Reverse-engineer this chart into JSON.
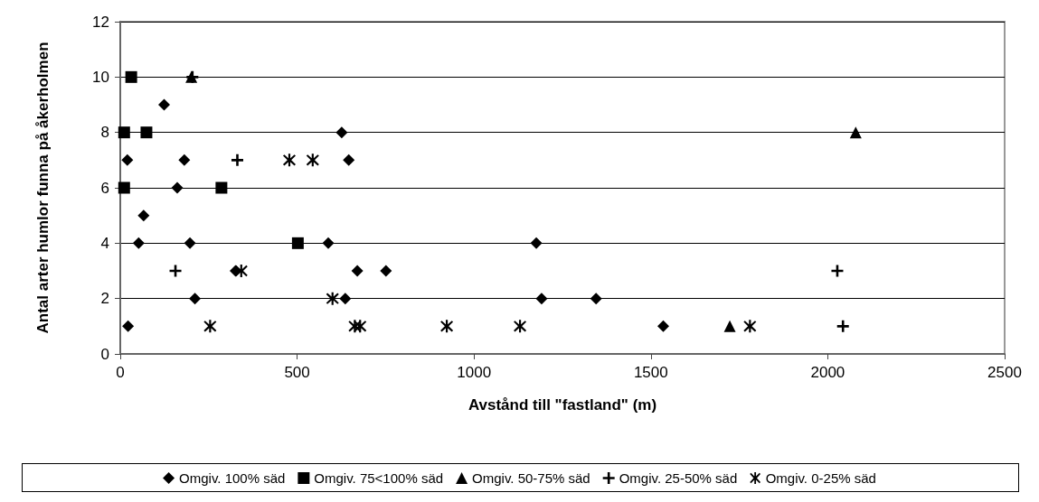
{
  "chart_data": {
    "type": "scatter",
    "xlabel": "Avstånd till \"fastland\" (m)",
    "ylabel": "Antal arter humlor funna på åkerholmen",
    "xlim": [
      0,
      2500
    ],
    "xticks": [
      0,
      500,
      1000,
      1500,
      2000,
      2500
    ],
    "ylim": [
      0,
      12
    ],
    "yticks": [
      0,
      2,
      4,
      6,
      8,
      10,
      12
    ],
    "grid": "y",
    "legend": "bottom",
    "series": [
      {
        "name": "Omgiv. 100% säd",
        "color": "#000000",
        "marker": "diamond",
        "x": [
          124,
          626,
          20,
          181,
          646,
          161,
          66,
          52,
          197,
          588,
          1176,
          326,
          670,
          751,
          211,
          636,
          1191,
          1345,
          22,
          1535
        ],
        "values": [
          9,
          8,
          7,
          7,
          7,
          6,
          5,
          4,
          4,
          4,
          4,
          3,
          3,
          3,
          2,
          2,
          2,
          2,
          1,
          1
        ]
      },
      {
        "name": "Omgiv. 75<100% säd",
        "color": "#000000",
        "marker": "square",
        "x": [
          31,
          11,
          74,
          11,
          286,
          502
        ],
        "values": [
          10,
          8,
          8,
          6,
          6,
          4
        ]
      },
      {
        "name": "Omgiv. 50-75% säd",
        "color": "#000000",
        "marker": "triangle",
        "x": [
          201,
          2079,
          1723
        ],
        "values": [
          10,
          8,
          1
        ]
      },
      {
        "name": "Omgiv. 25-50% säd",
        "color": "#000000",
        "marker": "cross",
        "x": [
          204,
          331,
          156,
          2027,
          2043
        ],
        "values": [
          10,
          7,
          3,
          3,
          1
        ]
      },
      {
        "name": "Omgiv. 0-25% säd",
        "color": "#000000",
        "marker": "star",
        "x": [
          478,
          544,
          342,
          600,
          254,
          663,
          678,
          923,
          1130,
          1780
        ],
        "values": [
          7,
          7,
          3,
          2,
          1,
          1,
          1,
          1,
          1,
          1
        ]
      }
    ]
  }
}
